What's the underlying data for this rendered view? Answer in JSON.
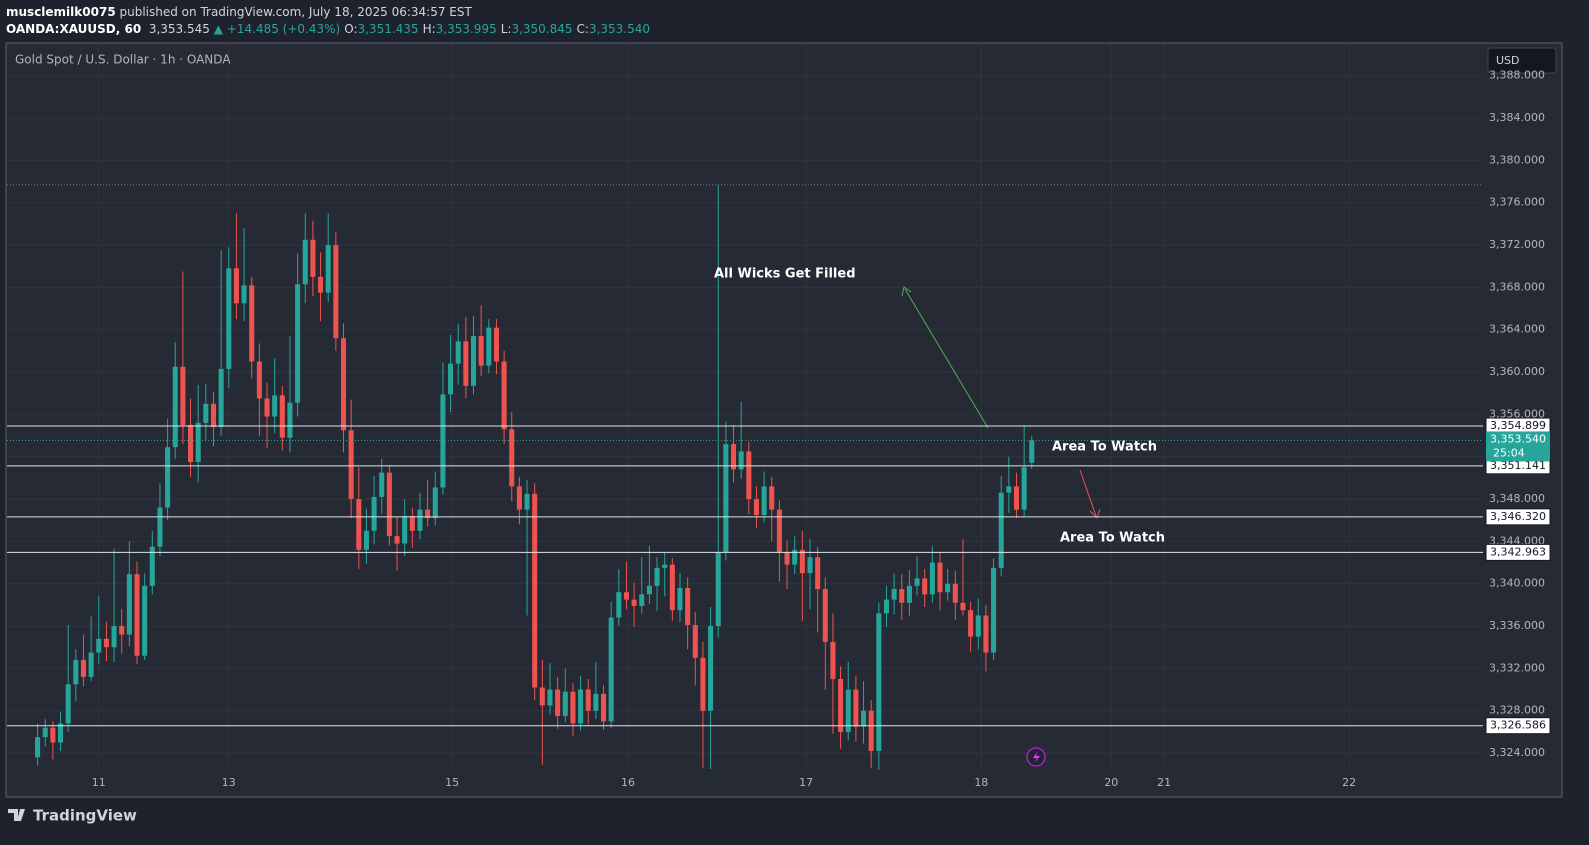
{
  "header": {
    "publisher": "musclemilk0075",
    "published": "published on TradingView.com, July 18, 2025 06:34:57 EST",
    "symbol": "OANDA:XAUUSD, 60",
    "last": "3,353.545",
    "change_arrow": "▲",
    "change": "+14.485 (+0.43%)",
    "ohlc": [
      {
        "key": "O:",
        "value": "3,351.435"
      },
      {
        "key": "H:",
        "value": "3,353.995"
      },
      {
        "key": "L:",
        "value": "3,350.845"
      },
      {
        "key": "C:",
        "value": "3,353.540"
      }
    ]
  },
  "chart_data": {
    "type": "candlestick",
    "title": "Gold Spot / U.S. Dollar · 1h · OANDA",
    "currency": "USD",
    "colors": {
      "up": "#26a69a",
      "down": "#ef5350"
    },
    "grid": true,
    "candles": [
      [
        3323.6,
        3326.8,
        3322.8,
        3325.5
      ],
      [
        3325.5,
        3327.2,
        3324.6,
        3326.4
      ],
      [
        3326.4,
        3327.0,
        3323.4,
        3325.0
      ],
      [
        3325.0,
        3327.9,
        3324.2,
        3326.8
      ],
      [
        3326.8,
        3336.1,
        3326.0,
        3330.5
      ],
      [
        3330.5,
        3333.8,
        3328.9,
        3332.8
      ],
      [
        3332.8,
        3335.2,
        3330.3,
        3331.2
      ],
      [
        3331.2,
        3336.9,
        3330.8,
        3333.5
      ],
      [
        3333.5,
        3338.8,
        3332.4,
        3334.8
      ],
      [
        3334.8,
        3336.4,
        3332.7,
        3334.0
      ],
      [
        3334.0,
        3343.3,
        3332.6,
        3336.0
      ],
      [
        3336.0,
        3337.6,
        3333.4,
        3335.2
      ],
      [
        3335.2,
        3344.0,
        3334.1,
        3340.9
      ],
      [
        3340.9,
        3342.1,
        3332.4,
        3333.2
      ],
      [
        3333.2,
        3341.0,
        3332.8,
        3339.8
      ],
      [
        3339.8,
        3345.0,
        3339.0,
        3343.5
      ],
      [
        3343.5,
        3349.5,
        3342.6,
        3347.2
      ],
      [
        3347.2,
        3355.6,
        3346.0,
        3352.9
      ],
      [
        3352.9,
        3362.8,
        3351.8,
        3360.5
      ],
      [
        3360.5,
        3369.5,
        3353.2,
        3355.0
      ],
      [
        3355.0,
        3357.5,
        3350.1,
        3351.5
      ],
      [
        3351.5,
        3358.8,
        3349.6,
        3355.2
      ],
      [
        3355.2,
        3358.9,
        3353.6,
        3357.0
      ],
      [
        3357.0,
        3358.1,
        3353.0,
        3354.8
      ],
      [
        3354.8,
        3371.5,
        3354.0,
        3360.3
      ],
      [
        3360.3,
        3371.8,
        3358.5,
        3369.8
      ],
      [
        3369.8,
        3375.0,
        3365.0,
        3366.5
      ],
      [
        3366.5,
        3373.6,
        3364.8,
        3368.2
      ],
      [
        3368.2,
        3369.0,
        3359.4,
        3361.0
      ],
      [
        3361.0,
        3362.7,
        3354.0,
        3357.5
      ],
      [
        3357.5,
        3359.0,
        3352.8,
        3355.8
      ],
      [
        3355.8,
        3361.3,
        3354.2,
        3357.8
      ],
      [
        3357.8,
        3358.7,
        3352.6,
        3353.8
      ],
      [
        3353.8,
        3363.4,
        3352.4,
        3357.1
      ],
      [
        3357.1,
        3371.2,
        3355.8,
        3368.3
      ],
      [
        3368.3,
        3375.0,
        3366.5,
        3372.5
      ],
      [
        3372.5,
        3374.3,
        3367.2,
        3369.0
      ],
      [
        3369.0,
        3371.3,
        3364.8,
        3367.5
      ],
      [
        3367.5,
        3375.0,
        3366.6,
        3372.0
      ],
      [
        3372.0,
        3373.2,
        3362.0,
        3363.2
      ],
      [
        3363.2,
        3364.6,
        3352.4,
        3354.5
      ],
      [
        3354.5,
        3357.4,
        3346.2,
        3348.0
      ],
      [
        3348.0,
        3351.0,
        3341.4,
        3343.2
      ],
      [
        3343.2,
        3347.1,
        3341.9,
        3345.0
      ],
      [
        3345.0,
        3350.2,
        3343.7,
        3348.2
      ],
      [
        3348.2,
        3351.8,
        3346.6,
        3350.5
      ],
      [
        3350.5,
        3351.2,
        3343.6,
        3344.5
      ],
      [
        3344.5,
        3346.3,
        3341.2,
        3343.8
      ],
      [
        3343.8,
        3348.0,
        3342.6,
        3346.4
      ],
      [
        3346.4,
        3347.2,
        3343.4,
        3345.0
      ],
      [
        3345.0,
        3348.6,
        3344.2,
        3347.0
      ],
      [
        3347.0,
        3349.8,
        3345.4,
        3346.2
      ],
      [
        3346.2,
        3350.6,
        3345.5,
        3349.1
      ],
      [
        3349.1,
        3360.9,
        3348.4,
        3357.9
      ],
      [
        3357.9,
        3363.5,
        3356.2,
        3360.8
      ],
      [
        3360.8,
        3364.6,
        3358.8,
        3362.9
      ],
      [
        3362.9,
        3365.2,
        3357.5,
        3358.7
      ],
      [
        3358.7,
        3365.3,
        3357.9,
        3363.4
      ],
      [
        3363.4,
        3366.3,
        3359.6,
        3360.6
      ],
      [
        3360.6,
        3365.0,
        3359.9,
        3364.2
      ],
      [
        3364.2,
        3365.0,
        3359.8,
        3361.0
      ],
      [
        3361.0,
        3362.0,
        3353.2,
        3354.6
      ],
      [
        3354.6,
        3356.2,
        3347.8,
        3349.2
      ],
      [
        3349.2,
        3350.1,
        3345.6,
        3347.0
      ],
      [
        3347.0,
        3349.8,
        3337.0,
        3348.5
      ],
      [
        3348.5,
        3349.5,
        3329.0,
        3330.2
      ],
      [
        3330.2,
        3332.8,
        3322.9,
        3328.5
      ],
      [
        3328.5,
        3332.5,
        3327.6,
        3330.0
      ],
      [
        3330.0,
        3331.2,
        3326.3,
        3327.5
      ],
      [
        3327.5,
        3332.0,
        3326.9,
        3329.8
      ],
      [
        3329.8,
        3330.6,
        3325.6,
        3326.8
      ],
      [
        3326.8,
        3331.3,
        3326.1,
        3330.0
      ],
      [
        3330.0,
        3331.0,
        3326.7,
        3328.0
      ],
      [
        3328.0,
        3332.6,
        3327.2,
        3329.6
      ],
      [
        3329.6,
        3330.4,
        3326.2,
        3327.0
      ],
      [
        3327.0,
        3338.3,
        3326.4,
        3336.8
      ],
      [
        3336.8,
        3341.4,
        3336.0,
        3339.2
      ],
      [
        3339.2,
        3342.1,
        3337.6,
        3338.5
      ],
      [
        3338.5,
        3340.1,
        3335.9,
        3337.9
      ],
      [
        3337.9,
        3342.5,
        3337.2,
        3339.0
      ],
      [
        3339.0,
        3343.6,
        3338.1,
        3339.8
      ],
      [
        3339.8,
        3342.5,
        3337.4,
        3341.5
      ],
      [
        3341.5,
        3343.0,
        3338.8,
        3341.8
      ],
      [
        3341.8,
        3342.4,
        3336.5,
        3337.5
      ],
      [
        3337.5,
        3341.0,
        3336.4,
        3339.6
      ],
      [
        3339.6,
        3340.6,
        3333.8,
        3336.1
      ],
      [
        3336.1,
        3337.3,
        3330.4,
        3333.0
      ],
      [
        3333.0,
        3334.5,
        3322.6,
        3328.0
      ],
      [
        3328.0,
        3337.8,
        3322.5,
        3336.0
      ],
      [
        3336.0,
        3377.7,
        3334.9,
        3343.0
      ],
      [
        3343.0,
        3355.3,
        3342.2,
        3353.2
      ],
      [
        3353.2,
        3355.0,
        3349.6,
        3350.8
      ],
      [
        3350.8,
        3357.2,
        3349.9,
        3352.5
      ],
      [
        3352.5,
        3353.4,
        3346.6,
        3348.0
      ],
      [
        3348.0,
        3349.2,
        3345.3,
        3346.5
      ],
      [
        3346.5,
        3350.6,
        3345.8,
        3349.2
      ],
      [
        3349.2,
        3350.1,
        3344.0,
        3347.0
      ],
      [
        3347.0,
        3347.9,
        3340.2,
        3343.0
      ],
      [
        3343.0,
        3344.1,
        3339.5,
        3341.8
      ],
      [
        3341.8,
        3344.5,
        3340.9,
        3343.2
      ],
      [
        3343.2,
        3345.0,
        3336.5,
        3341.0
      ],
      [
        3341.0,
        3344.2,
        3337.6,
        3342.5
      ],
      [
        3342.5,
        3343.5,
        3335.4,
        3339.5
      ],
      [
        3339.5,
        3340.6,
        3330.0,
        3334.5
      ],
      [
        3334.5,
        3337.2,
        3325.8,
        3331.0
      ],
      [
        3331.0,
        3332.2,
        3324.4,
        3326.0
      ],
      [
        3326.0,
        3332.6,
        3325.2,
        3330.0
      ],
      [
        3330.0,
        3331.3,
        3325.1,
        3326.5
      ],
      [
        3326.5,
        3330.8,
        3324.9,
        3328.0
      ],
      [
        3328.0,
        3329.0,
        3322.6,
        3324.2
      ],
      [
        3324.2,
        3338.2,
        3322.4,
        3337.2
      ],
      [
        3337.2,
        3339.8,
        3335.9,
        3338.5
      ],
      [
        3338.5,
        3341.0,
        3337.1,
        3339.5
      ],
      [
        3339.5,
        3340.9,
        3336.6,
        3338.2
      ],
      [
        3338.2,
        3341.3,
        3337.0,
        3339.8
      ],
      [
        3339.8,
        3342.6,
        3338.9,
        3340.5
      ],
      [
        3340.5,
        3341.4,
        3337.8,
        3339.0
      ],
      [
        3339.0,
        3343.6,
        3338.2,
        3342.0
      ],
      [
        3342.0,
        3343.0,
        3337.5,
        3339.2
      ],
      [
        3339.2,
        3341.4,
        3338.4,
        3340.0
      ],
      [
        3340.0,
        3341.2,
        3336.6,
        3338.2
      ],
      [
        3338.2,
        3344.2,
        3337.0,
        3337.5
      ],
      [
        3337.5,
        3338.3,
        3333.6,
        3335.0
      ],
      [
        3335.0,
        3338.6,
        3333.8,
        3337.0
      ],
      [
        3337.0,
        3338.0,
        3331.7,
        3333.5
      ],
      [
        3333.5,
        3342.4,
        3332.8,
        3341.5
      ],
      [
        3341.5,
        3350.2,
        3340.7,
        3348.6
      ],
      [
        3348.6,
        3352.0,
        3346.7,
        3349.2
      ],
      [
        3349.2,
        3350.5,
        3346.2,
        3347.0
      ],
      [
        3347.0,
        3355.0,
        3346.4,
        3351.0
      ],
      [
        3351.435,
        3353.995,
        3350.845,
        3353.54
      ]
    ],
    "xlim": [
      -4,
      189
    ],
    "xticks": [
      {
        "value": 8,
        "label": "11"
      },
      {
        "value": 25,
        "label": "13"
      },
      {
        "value": 54.2,
        "label": "15"
      },
      {
        "value": 77.2,
        "label": "16"
      },
      {
        "value": 100.5,
        "label": "17"
      },
      {
        "value": 123.4,
        "label": "18"
      },
      {
        "value": 140.4,
        "label": "20"
      },
      {
        "value": 147.3,
        "label": "21"
      },
      {
        "value": 171.5,
        "label": "22"
      }
    ],
    "ylim": [
      3322.4,
      3391
    ],
    "yticks": [
      {
        "value": 3324,
        "label": "3,324.000"
      },
      {
        "value": 3328,
        "label": "3,328.000"
      },
      {
        "value": 3332,
        "label": "3,332.000"
      },
      {
        "value": 3336,
        "label": "3,336.000"
      },
      {
        "value": 3340,
        "label": "3,340.000"
      },
      {
        "value": 3344,
        "label": "3,344.000"
      },
      {
        "value": 3348,
        "label": "3,348.000"
      },
      {
        "value": 3352,
        "label": "3,352.000"
      },
      {
        "value": 3356,
        "label": "3,356.000"
      },
      {
        "value": 3360,
        "label": "3,360.000"
      },
      {
        "value": 3364,
        "label": "3,364.000"
      },
      {
        "value": 3368,
        "label": "3,368.000"
      },
      {
        "value": 3372,
        "label": "3,372.000"
      },
      {
        "value": 3376,
        "label": "3,376.000"
      },
      {
        "value": 3380,
        "label": "3,380.000"
      },
      {
        "value": 3384,
        "label": "3,384.000"
      },
      {
        "value": 3388,
        "label": "3,388.000"
      }
    ],
    "levels": [
      {
        "value": 3354.899,
        "label": "3,354.899"
      },
      {
        "value": 3351.141,
        "label": "3,351.141"
      },
      {
        "value": 3346.32,
        "label": "3,346.320"
      },
      {
        "value": 3342.963,
        "label": "3,342.963"
      },
      {
        "value": 3326.586,
        "label": "3,326.586"
      }
    ],
    "last_price": {
      "value": 3353.54,
      "label": "3,353.540",
      "countdown": "25:04"
    },
    "annotations": [
      {
        "text": "All Wicks Get Filled"
      },
      {
        "text": "Area To Watch"
      },
      {
        "text": "Area To Watch"
      }
    ]
  },
  "footer": {
    "brand": "TradingView"
  }
}
